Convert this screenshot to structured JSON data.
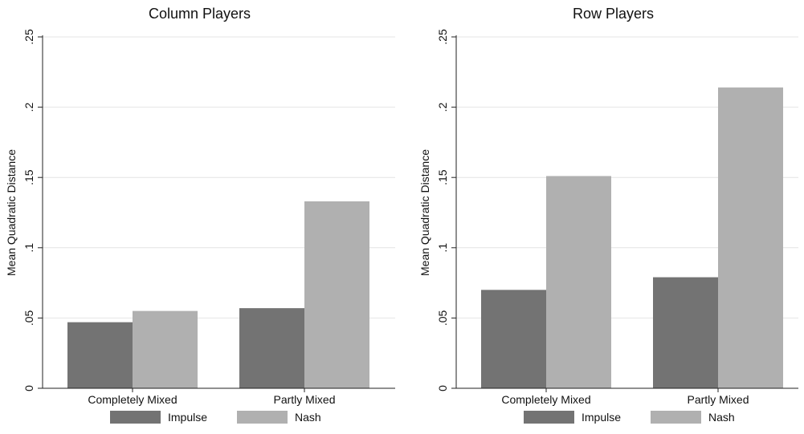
{
  "figure": {
    "legend_position": "bottom",
    "colors": {
      "impulse": "#737373",
      "nash": "#b0b0b0",
      "grid": "#e4e4e4",
      "axis": "#222222"
    }
  },
  "chart_data": [
    {
      "type": "bar",
      "title": "Column Players",
      "ylabel": "Mean Quadratic Distance",
      "xlabel": "",
      "categories": [
        "Completely Mixed",
        "Partly Mixed"
      ],
      "series": [
        {
          "name": "Impulse",
          "values": [
            0.047,
            0.057
          ]
        },
        {
          "name": "Nash",
          "values": [
            0.055,
            0.133
          ]
        }
      ],
      "ylim": [
        0,
        0.25
      ],
      "yticks": [
        0,
        0.05,
        0.1,
        0.15,
        0.2,
        0.25
      ],
      "ytick_labels": [
        "0",
        ".05",
        ".1",
        ".15",
        ".2",
        ".25"
      ],
      "grid": true
    },
    {
      "type": "bar",
      "title": "Row Players",
      "ylabel": "Mean Quadratic Distance",
      "xlabel": "",
      "categories": [
        "Completely Mixed",
        "Partly Mixed"
      ],
      "series": [
        {
          "name": "Impulse",
          "values": [
            0.07,
            0.079
          ]
        },
        {
          "name": "Nash",
          "values": [
            0.151,
            0.214
          ]
        }
      ],
      "ylim": [
        0,
        0.25
      ],
      "yticks": [
        0,
        0.05,
        0.1,
        0.15,
        0.2,
        0.25
      ],
      "ytick_labels": [
        "0",
        ".05",
        ".1",
        ".15",
        ".2",
        ".25"
      ],
      "grid": true
    }
  ]
}
